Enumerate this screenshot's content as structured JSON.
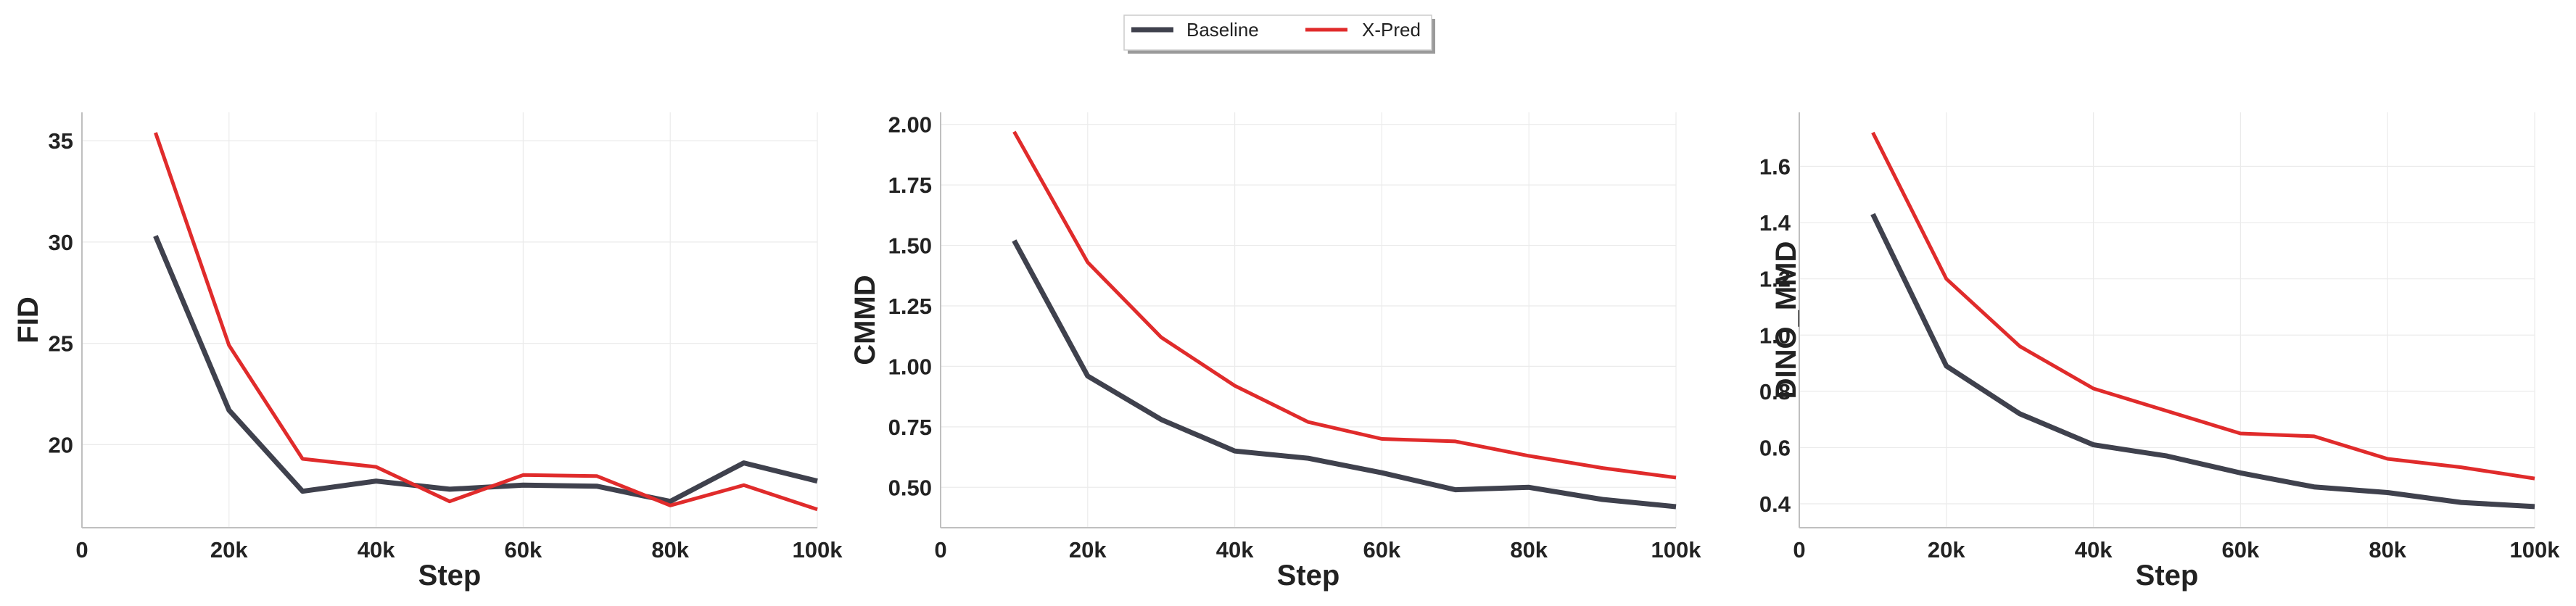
{
  "legend": {
    "entries": [
      {
        "name": "Baseline",
        "color": "#3f414d"
      },
      {
        "name": "X-Pred",
        "color": "#e02b2b"
      }
    ]
  },
  "chart_data": [
    {
      "type": "line",
      "xlabel": "Step",
      "ylabel": "FID",
      "x": [
        10000,
        20000,
        30000,
        40000,
        50000,
        60000,
        70000,
        80000,
        90000,
        100000
      ],
      "xlim": [
        0,
        100000
      ],
      "ylim": [
        15.9,
        36.4
      ],
      "xticks": [
        0,
        20000,
        40000,
        60000,
        80000,
        100000
      ],
      "xtick_labels": [
        "0",
        "20k",
        "40k",
        "60k",
        "80k",
        "100k"
      ],
      "yticks": [
        20,
        25,
        30,
        35
      ],
      "ytick_labels": [
        "20",
        "25",
        "30",
        "35"
      ],
      "grid": true,
      "series": [
        {
          "name": "Baseline",
          "color": "#3f414d",
          "values": [
            30.3,
            21.7,
            17.7,
            18.2,
            17.8,
            18.0,
            17.95,
            17.2,
            19.1,
            18.2
          ]
        },
        {
          "name": "X-Pred",
          "color": "#e02b2b",
          "values": [
            35.4,
            24.9,
            19.3,
            18.9,
            17.2,
            18.5,
            18.45,
            17.0,
            18.0,
            16.8
          ]
        }
      ]
    },
    {
      "type": "line",
      "xlabel": "Step",
      "ylabel": "CMMD",
      "x": [
        10000,
        20000,
        30000,
        40000,
        50000,
        60000,
        70000,
        80000,
        90000,
        100000
      ],
      "xlim": [
        0,
        100000
      ],
      "ylim": [
        0.333,
        2.05
      ],
      "xticks": [
        0,
        20000,
        40000,
        60000,
        80000,
        100000
      ],
      "xtick_labels": [
        "0",
        "20k",
        "40k",
        "60k",
        "80k",
        "100k"
      ],
      "yticks": [
        0.5,
        0.75,
        1.0,
        1.25,
        1.5,
        1.75,
        2.0
      ],
      "ytick_labels": [
        "0.50",
        "0.75",
        "1.00",
        "1.25",
        "1.50",
        "1.75",
        "2.00"
      ],
      "grid": true,
      "series": [
        {
          "name": "Baseline",
          "color": "#3f414d",
          "values": [
            1.52,
            0.96,
            0.78,
            0.65,
            0.62,
            0.56,
            0.49,
            0.5,
            0.45,
            0.42
          ]
        },
        {
          "name": "X-Pred",
          "color": "#e02b2b",
          "values": [
            1.97,
            1.43,
            1.12,
            0.92,
            0.77,
            0.7,
            0.69,
            0.63,
            0.58,
            0.54
          ]
        }
      ]
    },
    {
      "type": "line",
      "xlabel": "Step",
      "ylabel": "DINO_MMD",
      "x": [
        10000,
        20000,
        30000,
        40000,
        50000,
        60000,
        70000,
        80000,
        90000,
        100000
      ],
      "xlim": [
        0,
        100000
      ],
      "ylim": [
        0.315,
        1.792
      ],
      "xticks": [
        0,
        20000,
        40000,
        60000,
        80000,
        100000
      ],
      "xtick_labels": [
        "0",
        "20k",
        "40k",
        "60k",
        "80k",
        "100k"
      ],
      "yticks": [
        0.4,
        0.6,
        0.8,
        1.0,
        1.2,
        1.4,
        1.6
      ],
      "ytick_labels": [
        "0.4",
        "0.6",
        "0.8",
        "1.0",
        "1.2",
        "1.4",
        "1.6"
      ],
      "grid": true,
      "series": [
        {
          "name": "Baseline",
          "color": "#3f414d",
          "values": [
            1.43,
            0.89,
            0.72,
            0.61,
            0.57,
            0.51,
            0.46,
            0.44,
            0.405,
            0.39
          ]
        },
        {
          "name": "X-Pred",
          "color": "#e02b2b",
          "values": [
            1.72,
            1.2,
            0.96,
            0.81,
            0.73,
            0.65,
            0.64,
            0.56,
            0.53,
            0.49
          ]
        }
      ]
    }
  ]
}
